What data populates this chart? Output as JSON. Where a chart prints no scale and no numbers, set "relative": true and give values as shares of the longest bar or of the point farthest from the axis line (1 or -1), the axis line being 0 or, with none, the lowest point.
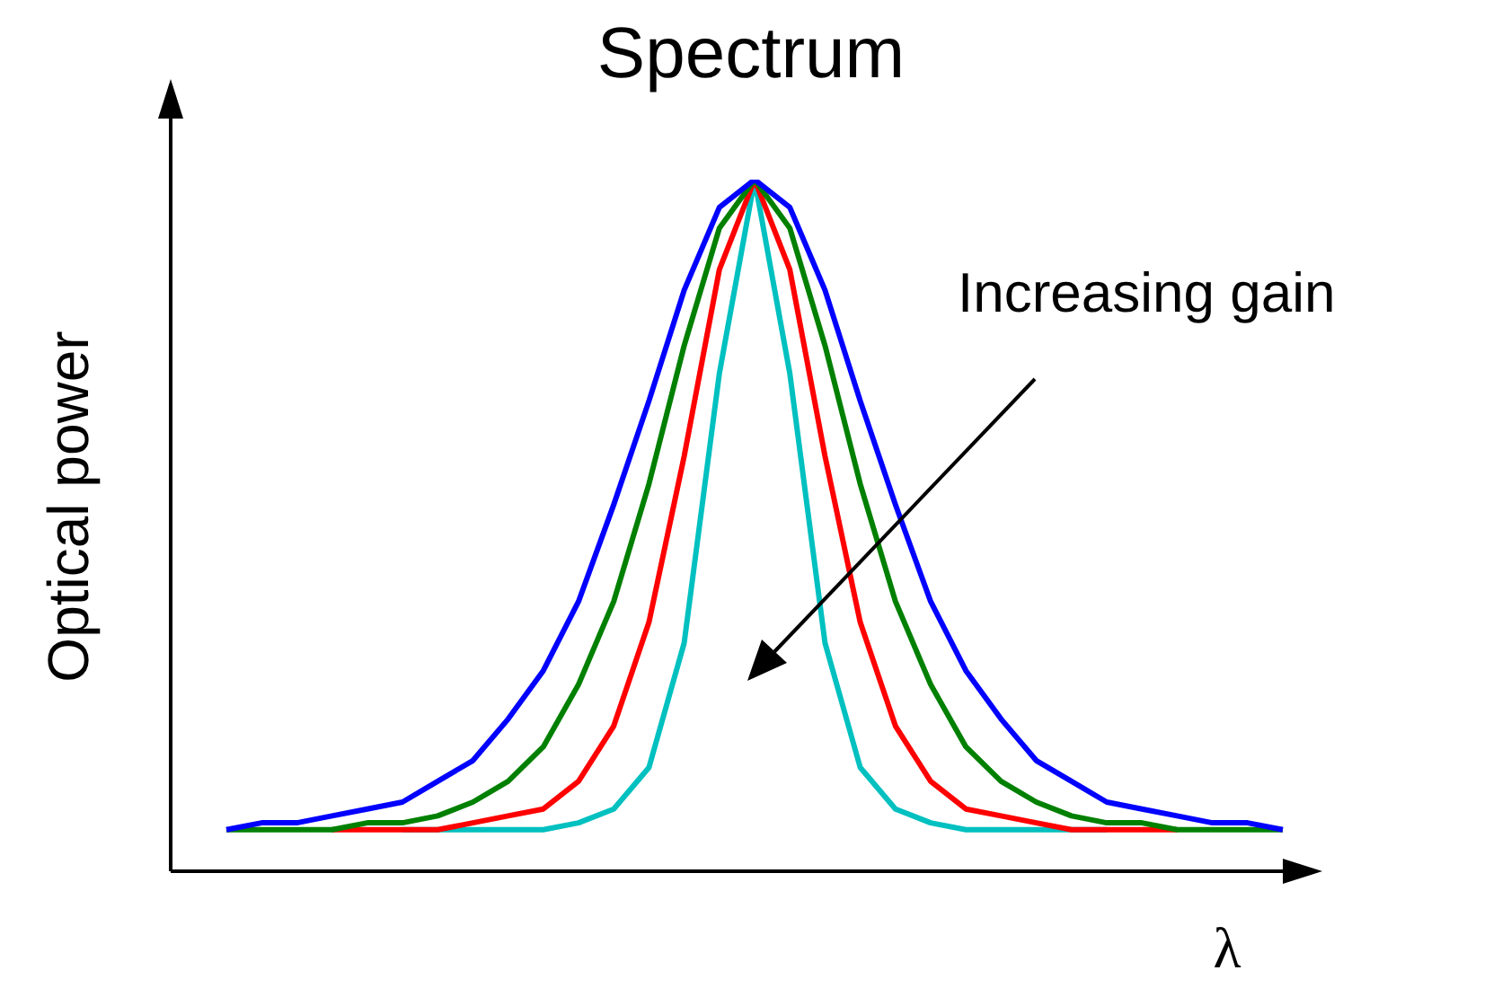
{
  "chart_data": {
    "type": "line",
    "title": "Spectrum",
    "xlabel": "λ",
    "ylabel": "Optical power",
    "annotations": [
      "Increasing gain"
    ],
    "relative": true,
    "marker": "none",
    "categories": [
      null,
      null,
      null,
      null,
      null,
      null,
      null,
      null,
      null,
      null,
      null,
      null,
      null,
      null,
      null,
      null,
      null,
      null,
      null,
      null,
      null,
      null,
      null,
      null,
      null,
      null,
      null,
      null,
      null,
      null,
      null
    ],
    "series": [
      {
        "color": "#0000ff",
        "values": [
          0.06,
          0.07,
          0.07,
          0.08,
          0.09,
          0.1,
          0.13,
          0.16,
          0.22,
          0.29,
          0.39,
          0.53,
          0.68,
          0.84,
          0.96,
          1,
          0.96,
          0.84,
          0.68,
          0.53,
          0.39,
          0.29,
          0.22,
          0.16,
          0.13,
          0.1,
          0.09,
          0.08,
          0.07,
          0.07,
          0.06
        ]
      },
      {
        "color": "#008000",
        "values": [
          0.06,
          0.06,
          0.06,
          0.06,
          0.07,
          0.07,
          0.08,
          0.1,
          0.13,
          0.18,
          0.27,
          0.39,
          0.56,
          0.76,
          0.93,
          1,
          0.93,
          0.76,
          0.56,
          0.39,
          0.27,
          0.18,
          0.13,
          0.1,
          0.08,
          0.07,
          0.07,
          0.06,
          0.06,
          0.06,
          0.06
        ]
      },
      {
        "color": "#ff0000",
        "values": [
          null,
          null,
          null,
          0.06,
          0.06,
          0.06,
          0.06,
          0.07,
          0.08,
          0.09,
          0.13,
          0.21,
          0.36,
          0.6,
          0.87,
          1,
          0.87,
          0.6,
          0.36,
          0.21,
          0.13,
          0.09,
          0.08,
          0.07,
          0.06,
          0.06,
          0.06,
          0.06,
          null,
          null,
          null
        ]
      },
      {
        "color": "#00c0c0",
        "values": [
          null,
          null,
          null,
          null,
          null,
          0.06,
          0.06,
          0.06,
          0.06,
          0.06,
          0.07,
          0.09,
          0.15,
          0.33,
          0.72,
          1,
          0.72,
          0.33,
          0.15,
          0.09,
          0.07,
          0.06,
          0.06,
          0.06,
          0.06,
          0.06,
          null,
          null,
          null,
          null,
          null
        ]
      }
    ]
  }
}
